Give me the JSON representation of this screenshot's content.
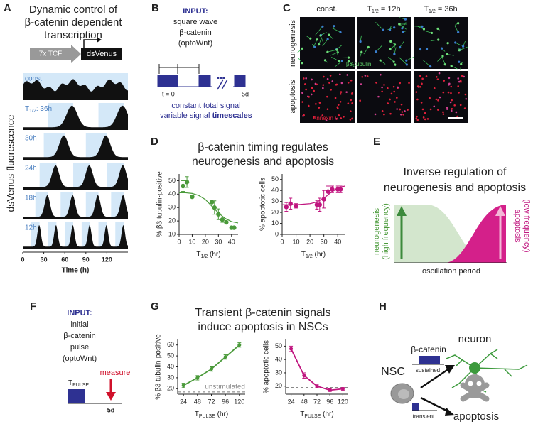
{
  "panel_labels": [
    "A",
    "B",
    "C",
    "D",
    "E",
    "F",
    "G",
    "H"
  ],
  "panel_a": {
    "title_lines": [
      "Dynamic control of",
      "β-catenin dependent",
      "transcription"
    ],
    "construct": [
      "7x TCF",
      "dsVenus"
    ],
    "ylabel": "dsVenus fluorescence",
    "xlabel": "Time (h)",
    "xlim": [
      0,
      150
    ],
    "xticks": [
      0,
      30,
      60,
      90,
      120
    ],
    "rows": [
      {
        "label": "const"
      },
      {
        "label": {
          "main": "T",
          "sub": "1/2",
          "rest": ": 36h"
        },
        "half_period": 36
      },
      {
        "label": "30h",
        "half_period": 30
      },
      {
        "label": "24h",
        "half_period": 24
      },
      {
        "label": "18h",
        "half_period": 18
      },
      {
        "label": "12h",
        "half_period": 12
      }
    ]
  },
  "panel_b": {
    "lines": [
      "INPUT:",
      "square wave",
      "β-catenin",
      "(optoWnt)"
    ],
    "period": {
      "main": "T",
      "sub": "1/2"
    },
    "start": "t = 0",
    "end": "5d",
    "caption": [
      "constant total signal",
      "variable signal",
      "timescales"
    ]
  },
  "panel_c": {
    "columns": [
      "const.",
      {
        "main": "T",
        "sub": "1/2",
        "rest": " = 12h"
      },
      {
        "main": "T",
        "sub": "1/2",
        "rest": " = 36h"
      }
    ],
    "rows": [
      "neurogenesis",
      "apoptosis"
    ],
    "stains": [
      "β3-tubulin",
      "Annexin V"
    ]
  },
  "panel_d": {
    "title_lines": [
      "β-catenin timing regulates",
      "neurogenesis and apoptosis"
    ]
  },
  "panel_e": {
    "title_lines": [
      "Inverse regulation of",
      "neurogenesis and apoptosis"
    ],
    "left": [
      "neurogenesis",
      "(high frequency)"
    ],
    "right": [
      "apoptosis",
      "(low frequency)"
    ],
    "xlabel": "oscillation period"
  },
  "panel_f": {
    "lines": [
      "INPUT:",
      "initial",
      "β-catenin",
      "pulse",
      "(optoWnt)"
    ],
    "pulse": {
      "main": "T",
      "sub": "PULSE"
    },
    "measure": "measure",
    "end": "5d"
  },
  "panel_g": {
    "title_lines": [
      "Transient β-catenin signals",
      "induce apoptosis in NSCs"
    ]
  },
  "panel_h": {
    "signal": "β-catenin",
    "sustained": "sustained",
    "transient": "transient",
    "nsc": "NSC",
    "neuron": "neuron",
    "apoptosis": "apoptosis"
  },
  "chart_data": [
    {
      "type": "scatter",
      "color": "#4a9a3a",
      "ylabel": "% β3 tubulin-positive",
      "xlabel": {
        "main": "T",
        "sub": "1/2",
        "rest": " (hr)"
      },
      "xlim": [
        0,
        45
      ],
      "xticks": [
        0,
        10,
        20,
        30,
        40
      ],
      "ylim": [
        10,
        55
      ],
      "yticks": [
        10,
        20,
        30,
        40,
        50
      ],
      "x": [
        3,
        6,
        10,
        25,
        27,
        30,
        33,
        36,
        40,
        42
      ],
      "values": [
        46,
        49,
        38,
        34,
        30,
        25,
        21,
        19,
        15,
        15
      ],
      "errors": [
        4,
        4,
        0,
        0,
        5,
        4,
        2,
        0,
        0,
        0
      ],
      "fit": {
        "x": [
          0,
          5,
          10,
          15,
          20,
          25,
          30,
          35,
          40,
          45
        ],
        "values": [
          41,
          41,
          40.5,
          39,
          36,
          31,
          26,
          22,
          19.5,
          18.5
        ]
      }
    },
    {
      "type": "scatter",
      "color": "#c0157f",
      "ylabel": "% apoptotic cells",
      "xlabel": {
        "main": "T",
        "sub": "1/2",
        "rest": " (hr)"
      },
      "xlim": [
        0,
        45
      ],
      "xticks": [
        0,
        10,
        20,
        30,
        40
      ],
      "ylim": [
        0,
        55
      ],
      "yticks": [
        0,
        10,
        20,
        30,
        40,
        50
      ],
      "x": [
        3,
        6,
        10,
        25,
        27,
        30,
        33,
        36,
        40,
        42
      ],
      "values": [
        25,
        28,
        26,
        27,
        27,
        32,
        39,
        41,
        41,
        41
      ],
      "errors": [
        4,
        5,
        2,
        4,
        6,
        8,
        5,
        3,
        3,
        3
      ],
      "fit": {
        "x": [
          0,
          5,
          10,
          15,
          20,
          25,
          30,
          35,
          40,
          45
        ],
        "values": [
          27,
          27,
          27,
          27.5,
          28,
          29.5,
          33,
          38,
          42,
          44
        ]
      }
    },
    {
      "type": "line",
      "color": "#4a9a3a",
      "ylabel": "% β3 tubulin-positive",
      "xlabel": {
        "main": "T",
        "sub": "PULSE",
        "rest": " (hr)"
      },
      "xlim": [
        14,
        130
      ],
      "xticks": [
        24,
        48,
        72,
        96,
        120
      ],
      "ylim": [
        15,
        65
      ],
      "yticks": [
        20,
        30,
        40,
        50,
        60
      ],
      "x": [
        24,
        48,
        72,
        96,
        120
      ],
      "values": [
        23,
        30,
        38,
        49,
        60
      ],
      "errors": [
        2,
        2,
        2,
        2,
        2
      ],
      "reference": {
        "value": 17,
        "label": "unstimulated"
      }
    },
    {
      "type": "line",
      "color": "#c0157f",
      "ylabel": "% apoptotic cells",
      "xlabel": {
        "main": "T",
        "sub": "PULSE",
        "rest": " (hr)"
      },
      "xlim": [
        14,
        130
      ],
      "xticks": [
        24,
        48,
        72,
        96,
        120
      ],
      "ylim": [
        14,
        55
      ],
      "yticks": [
        20,
        30,
        40,
        50
      ],
      "x": [
        24,
        48,
        72,
        96,
        120
      ],
      "values": [
        48,
        28,
        20,
        17,
        18
      ],
      "errors": [
        2,
        2,
        1,
        1,
        1
      ],
      "reference": {
        "value": 19
      }
    }
  ]
}
